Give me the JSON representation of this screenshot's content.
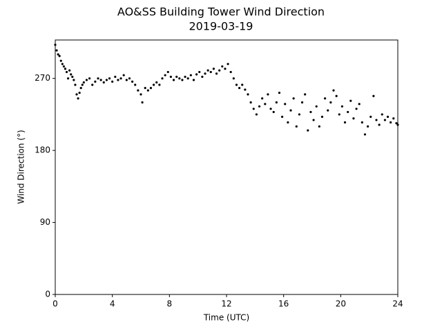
{
  "chart_data": {
    "type": "scatter",
    "title": "AO&SS Building Tower Wind Direction",
    "subtitle": "2019-03-19",
    "x_label": "Time (UTC)",
    "y_label": "Wind Direction (°)",
    "xlim": [
      0,
      24
    ],
    "xticks": [
      0,
      4,
      8,
      12,
      16,
      20,
      24
    ],
    "ylim": [
      0,
      318
    ],
    "yticks": [
      0,
      90,
      180,
      270
    ],
    "color": "#000000",
    "x": [
      0.0,
      0.1,
      0.2,
      0.3,
      0.4,
      0.5,
      0.6,
      0.7,
      0.8,
      0.9,
      1.0,
      1.1,
      1.2,
      1.3,
      1.4,
      1.5,
      1.6,
      1.7,
      1.8,
      1.9,
      2.0,
      2.2,
      2.4,
      2.6,
      2.8,
      3.0,
      3.2,
      3.4,
      3.6,
      3.8,
      4.0,
      4.2,
      4.4,
      4.6,
      4.8,
      5.0,
      5.2,
      5.4,
      5.6,
      5.8,
      6.0,
      6.1,
      6.3,
      6.5,
      6.7,
      6.9,
      7.1,
      7.3,
      7.5,
      7.7,
      7.9,
      8.1,
      8.3,
      8.5,
      8.7,
      8.9,
      9.1,
      9.3,
      9.5,
      9.7,
      9.9,
      10.1,
      10.3,
      10.5,
      10.7,
      10.9,
      11.1,
      11.3,
      11.5,
      11.7,
      11.9,
      12.1,
      12.3,
      12.5,
      12.7,
      12.9,
      13.1,
      13.3,
      13.5,
      13.7,
      13.9,
      14.1,
      14.3,
      14.5,
      14.7,
      14.9,
      15.1,
      15.3,
      15.5,
      15.7,
      15.9,
      16.1,
      16.3,
      16.5,
      16.7,
      16.9,
      17.1,
      17.3,
      17.5,
      17.7,
      17.9,
      18.1,
      18.3,
      18.5,
      18.7,
      18.9,
      19.1,
      19.3,
      19.5,
      19.7,
      19.9,
      20.1,
      20.3,
      20.5,
      20.7,
      20.9,
      21.1,
      21.3,
      21.5,
      21.7,
      21.9,
      22.1,
      22.3,
      22.5,
      22.7,
      22.9,
      23.1,
      23.3,
      23.5,
      23.7,
      23.9,
      24.0
    ],
    "values": [
      312,
      305,
      300,
      298,
      292,
      288,
      285,
      282,
      278,
      270,
      280,
      275,
      272,
      268,
      262,
      250,
      245,
      252,
      258,
      262,
      265,
      268,
      270,
      262,
      266,
      270,
      268,
      265,
      268,
      270,
      266,
      272,
      268,
      270,
      274,
      268,
      270,
      266,
      262,
      255,
      250,
      240,
      258,
      255,
      258,
      262,
      265,
      262,
      270,
      274,
      278,
      272,
      268,
      272,
      270,
      268,
      272,
      270,
      274,
      268,
      275,
      278,
      272,
      276,
      280,
      278,
      282,
      276,
      280,
      285,
      282,
      288,
      278,
      270,
      262,
      258,
      262,
      256,
      250,
      240,
      232,
      225,
      235,
      245,
      238,
      250,
      232,
      228,
      240,
      252,
      222,
      238,
      215,
      230,
      245,
      210,
      225,
      240,
      250,
      205,
      228,
      218,
      235,
      210,
      222,
      245,
      230,
      240,
      255,
      248,
      225,
      235,
      215,
      228,
      242,
      220,
      232,
      238,
      215,
      200,
      210,
      222,
      248,
      218,
      212,
      225,
      218,
      222,
      215,
      220,
      214,
      212
    ]
  }
}
